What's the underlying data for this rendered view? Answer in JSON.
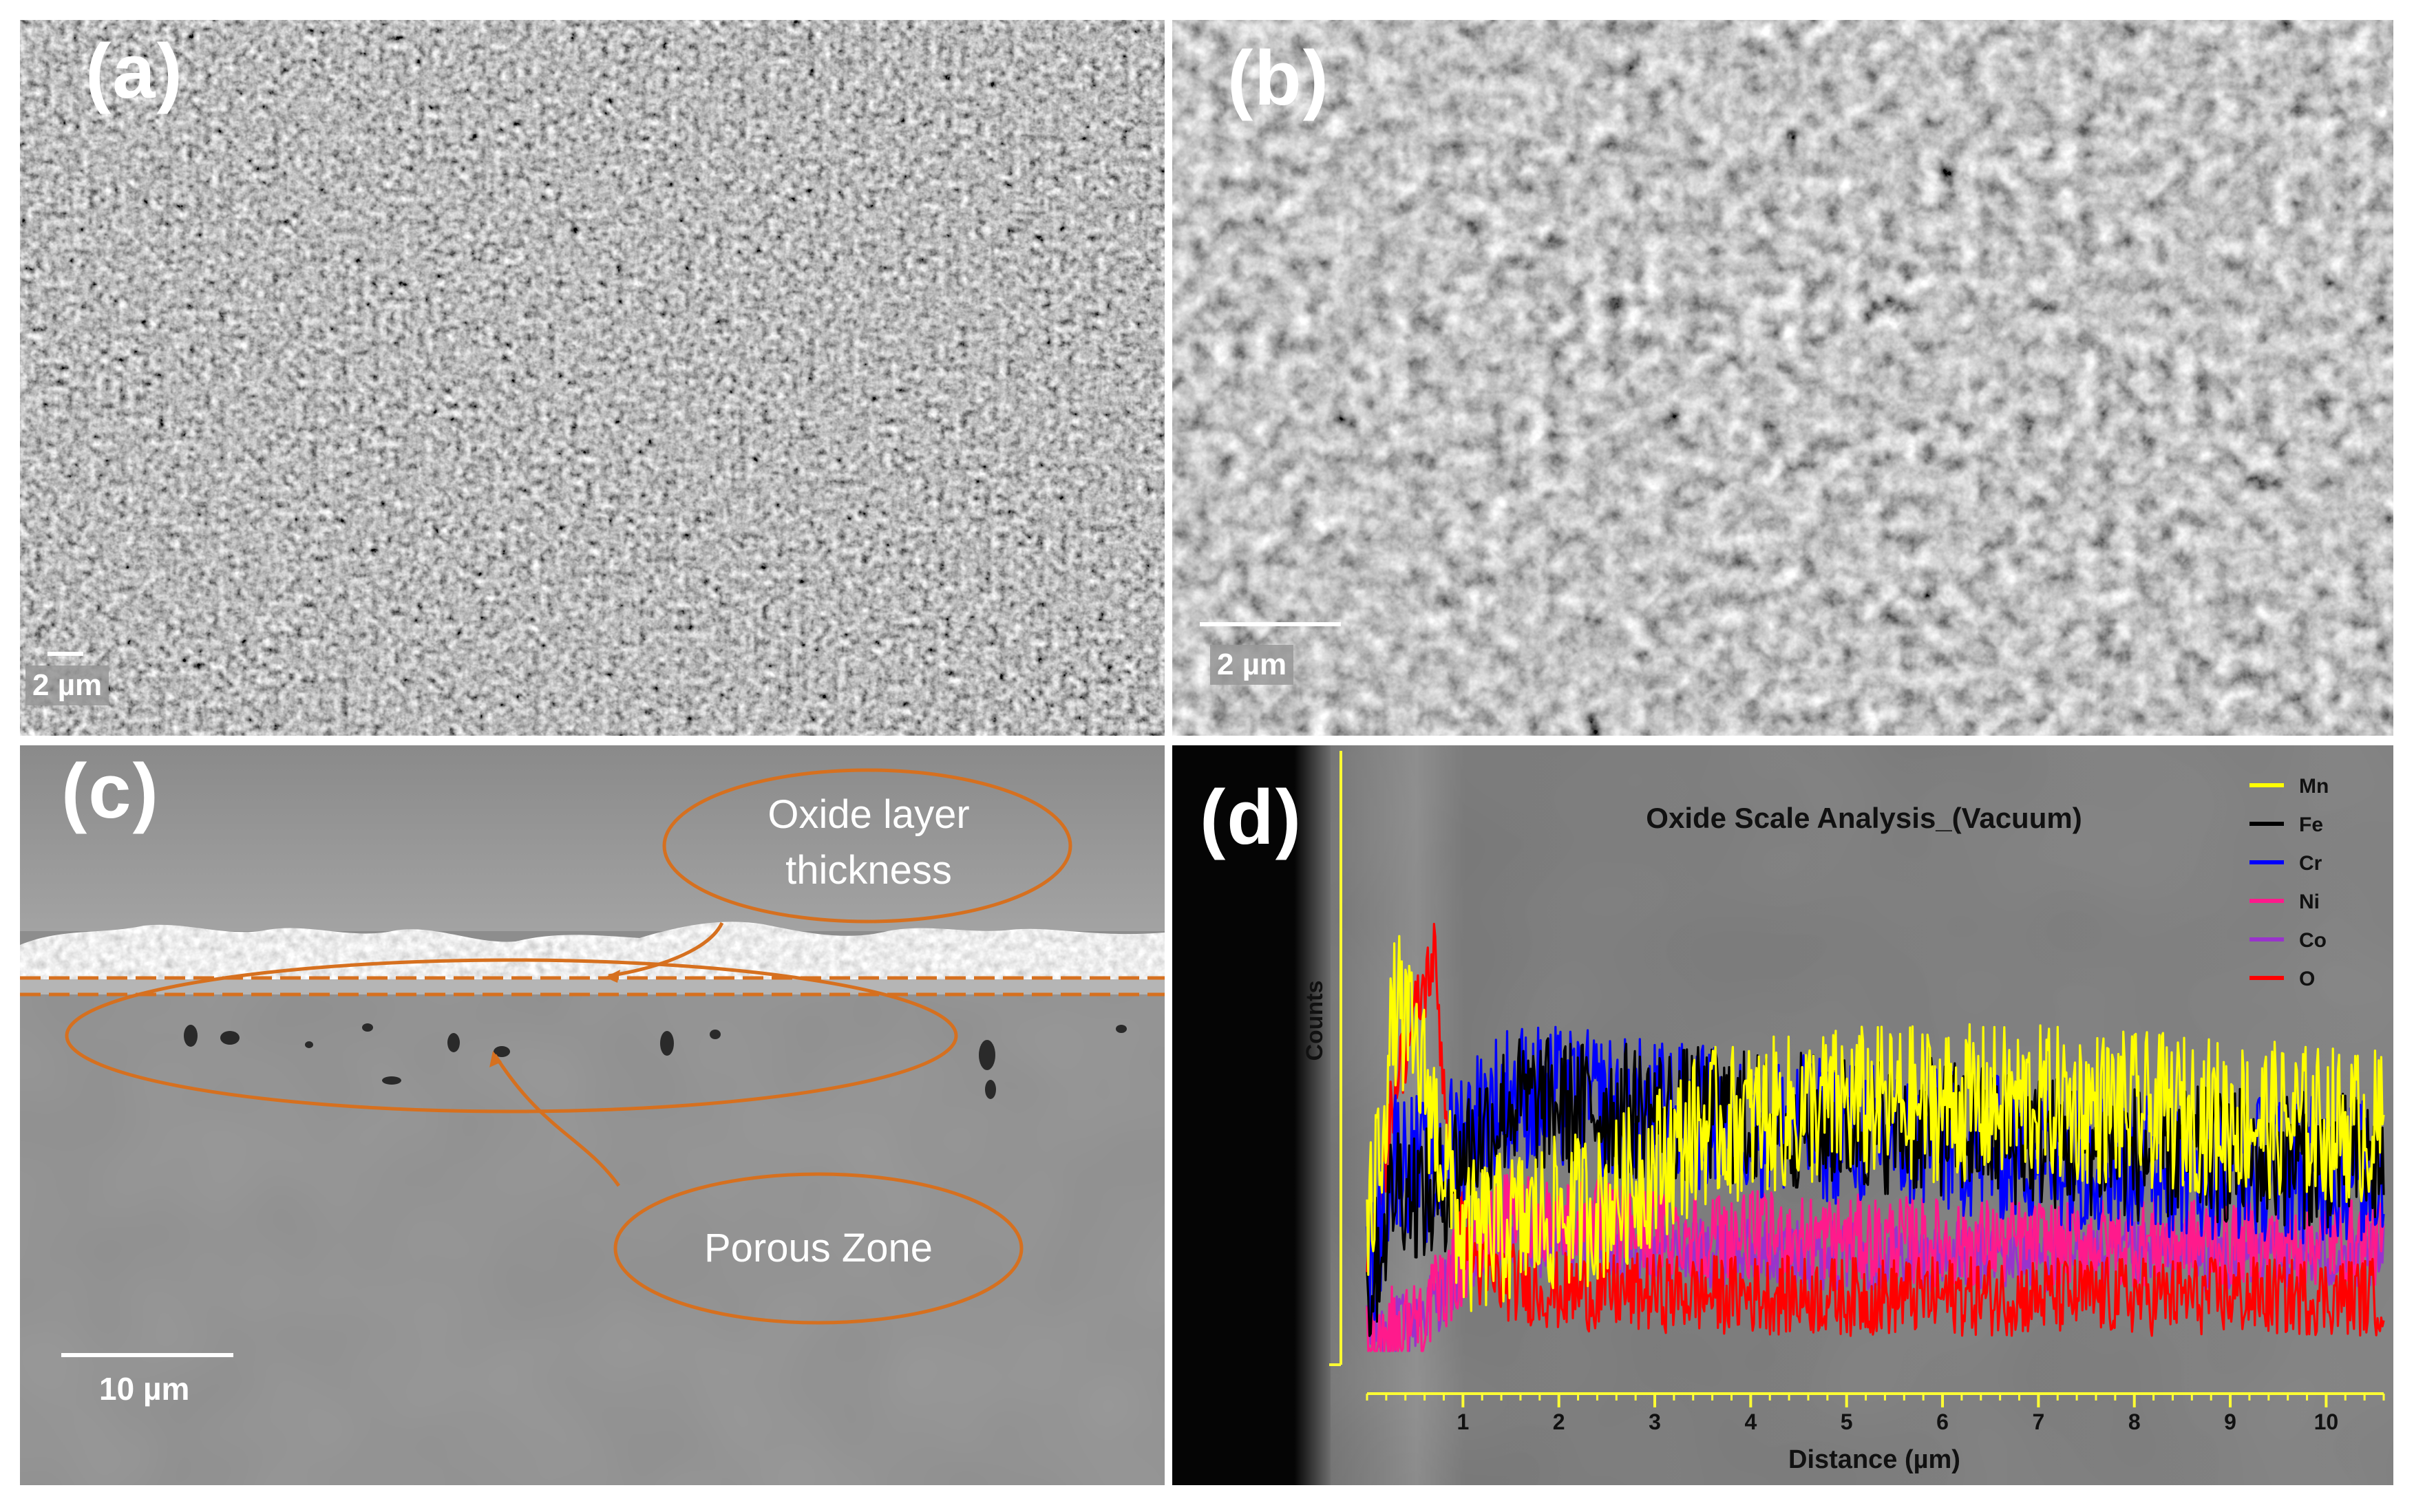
{
  "panels": {
    "a": {
      "label": "(a)",
      "scale": "2 µm"
    },
    "b": {
      "label": "(b)",
      "scale": "2 µm"
    },
    "c": {
      "label": "(c)",
      "scale": "10 µm",
      "callout_oxide_line1": "Oxide layer",
      "callout_oxide_line2": "thickness",
      "callout_porous": "Porous Zone"
    },
    "d": {
      "label": "(d)"
    }
  },
  "colors": {
    "annotation": "#d6701f",
    "axis": "#ffff33",
    "Mn": "#ffff00",
    "Fe": "#000000",
    "Cr": "#0000ff",
    "Ni": "#ff1a8c",
    "Co": "#9933cc",
    "O": "#ff0000"
  },
  "chart_data": {
    "type": "line",
    "title": "Oxide Scale Analysis_(Vacuum)",
    "xlabel": "Distance (µm)",
    "ylabel": "Counts",
    "xlim": [
      0,
      10.6
    ],
    "x_ticks": [
      "1",
      "2",
      "3",
      "4",
      "5",
      "6",
      "7",
      "8",
      "9",
      "10"
    ],
    "legend_placement": "top-right",
    "series": [
      {
        "name": "Mn",
        "profile": [
          [
            0,
            0.2
          ],
          [
            0.3,
            0.7
          ],
          [
            0.6,
            0.55
          ],
          [
            1.0,
            0.22
          ],
          [
            1.5,
            0.25
          ],
          [
            2.5,
            0.3
          ],
          [
            3.5,
            0.45
          ],
          [
            5,
            0.5
          ],
          [
            7,
            0.5
          ],
          [
            10.6,
            0.45
          ]
        ]
      },
      {
        "name": "Fe",
        "profile": [
          [
            0,
            0.1
          ],
          [
            0.3,
            0.35
          ],
          [
            0.7,
            0.3
          ],
          [
            1.0,
            0.4
          ],
          [
            1.5,
            0.5
          ],
          [
            3,
            0.48
          ],
          [
            6,
            0.45
          ],
          [
            8,
            0.4
          ],
          [
            10.6,
            0.38
          ]
        ]
      },
      {
        "name": "Cr",
        "profile": [
          [
            0,
            0.12
          ],
          [
            0.3,
            0.4
          ],
          [
            0.7,
            0.35
          ],
          [
            1.0,
            0.45
          ],
          [
            1.5,
            0.52
          ],
          [
            3,
            0.48
          ],
          [
            6,
            0.42
          ],
          [
            8,
            0.38
          ],
          [
            10.6,
            0.36
          ]
        ]
      },
      {
        "name": "Ni",
        "profile": [
          [
            0,
            0.03
          ],
          [
            0.4,
            0.05
          ],
          [
            0.7,
            0.1
          ],
          [
            1.0,
            0.18
          ],
          [
            1.5,
            0.28
          ],
          [
            3,
            0.24
          ],
          [
            6,
            0.22
          ],
          [
            10.6,
            0.22
          ]
        ]
      },
      {
        "name": "Co",
        "profile": [
          [
            0,
            0.03
          ],
          [
            0.4,
            0.05
          ],
          [
            0.7,
            0.1
          ],
          [
            1.0,
            0.16
          ],
          [
            1.5,
            0.22
          ],
          [
            3,
            0.2
          ],
          [
            6,
            0.19
          ],
          [
            10.6,
            0.19
          ]
        ]
      },
      {
        "name": "O",
        "profile": [
          [
            0,
            0.12
          ],
          [
            0.3,
            0.55
          ],
          [
            0.7,
            0.8
          ],
          [
            0.9,
            0.3
          ],
          [
            1.2,
            0.15
          ],
          [
            2,
            0.12
          ],
          [
            5,
            0.11
          ],
          [
            10.6,
            0.11
          ]
        ]
      }
    ]
  }
}
